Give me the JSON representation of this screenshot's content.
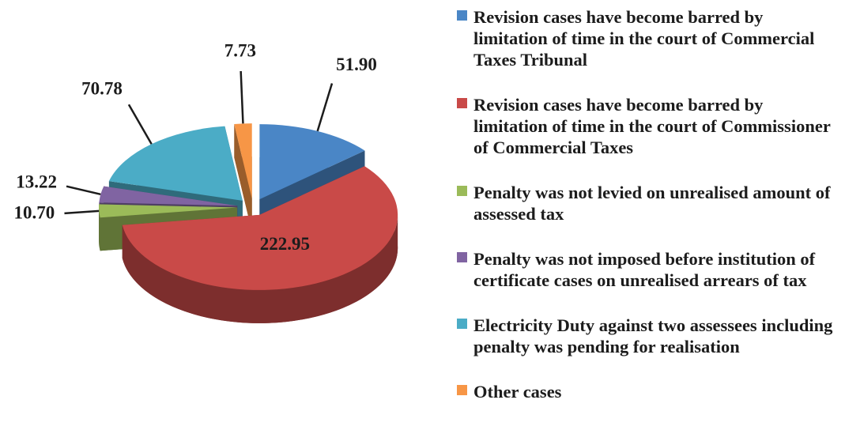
{
  "chart_data": {
    "type": "pie",
    "categories": [
      "Revision cases have become barred by limitation of time in the court of Commercial Taxes Tribunal",
      "Revision cases have become barred by limitation of time in the court of Commissioner of Commercial Taxes",
      "Penalty was not levied on unrealised amount of assessed tax",
      "Penalty was not imposed before institution of certificate cases on unrealised arrears of tax",
      "Electricity Duty against two assessees including penalty was pending for realisation",
      "Other  cases"
    ],
    "values": [
      51.9,
      222.95,
      10.7,
      13.22,
      70.78,
      7.73
    ],
    "value_labels": [
      "51.90",
      "222.95",
      "10.70",
      "13.22",
      "70.78",
      "7.73"
    ],
    "colors": [
      "#4a86c6",
      "#c94a48",
      "#9bbb59",
      "#8064a2",
      "#4bacc6",
      "#f79646"
    ]
  }
}
